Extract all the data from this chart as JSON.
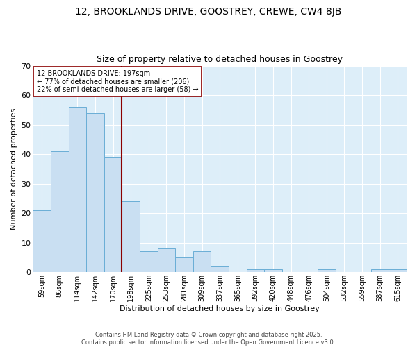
{
  "title": "12, BROOKLANDS DRIVE, GOOSTREY, CREWE, CW4 8JB",
  "subtitle": "Size of property relative to detached houses in Goostrey",
  "xlabel": "Distribution of detached houses by size in Goostrey",
  "ylabel": "Number of detached properties",
  "categories": [
    "59sqm",
    "86sqm",
    "114sqm",
    "142sqm",
    "170sqm",
    "198sqm",
    "225sqm",
    "253sqm",
    "281sqm",
    "309sqm",
    "337sqm",
    "365sqm",
    "392sqm",
    "420sqm",
    "448sqm",
    "476sqm",
    "504sqm",
    "532sqm",
    "559sqm",
    "587sqm",
    "615sqm"
  ],
  "values": [
    21,
    41,
    56,
    54,
    39,
    24,
    7,
    8,
    5,
    7,
    2,
    0,
    1,
    1,
    0,
    0,
    1,
    0,
    0,
    1,
    1
  ],
  "bar_color": "#c9dff2",
  "bar_edge_color": "#6aaed6",
  "annotation_property": "197sqm",
  "annotation_smaller_pct": "77%",
  "annotation_smaller_n": "206",
  "annotation_larger_pct": "22%",
  "annotation_larger_n": "58",
  "vline_color": "#8b0000",
  "annotation_box_color": "#ffffff",
  "annotation_box_edge": "#8b0000",
  "bg_color": "#ddeef9",
  "fig_bg_color": "#ffffff",
  "footer": "Contains HM Land Registry data © Crown copyright and database right 2025.\nContains public sector information licensed under the Open Government Licence v3.0.",
  "ylim": [
    0,
    70
  ],
  "title_fontsize": 10,
  "subtitle_fontsize": 9,
  "tick_fontsize": 7,
  "axis_label_fontsize": 8
}
